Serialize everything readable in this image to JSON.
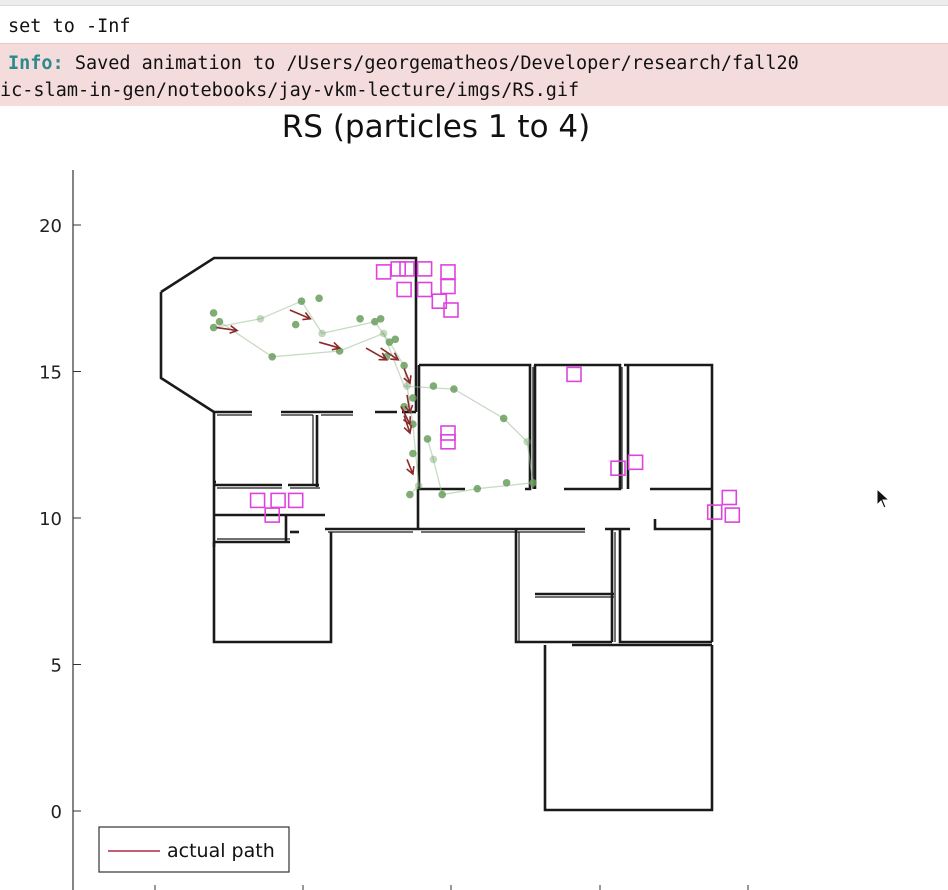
{
  "output": {
    "line1": "set to -Inf",
    "info_label": "Info:",
    "info_line1": " Saved animation to /Users/georgematheos/Developer/research/fall20",
    "info_line2": "ic-slam-in-gen/notebooks/jay-vkm-lecture/imgs/RS.gif"
  },
  "chart_data": {
    "type": "scatter",
    "title": "RS (particles 1 to 4)",
    "xlabel": "",
    "ylabel": "",
    "ylim": [
      -2.5,
      21.5
    ],
    "xlim": [
      -0.3,
      22.5
    ],
    "yticks": [
      0,
      5,
      10,
      15,
      20
    ],
    "legend": {
      "placement": "bottom-left",
      "entries": [
        "actual path"
      ]
    },
    "colors": {
      "walls": "#1a1a1a",
      "landmarks": "#dd44dd",
      "particles": "#6a9e5e",
      "arrows": "#8b2a2a",
      "legend_line": "#c06070"
    },
    "walls": [
      [
        [
          5.1,
          0
        ],
        [
          5.1,
          0.15
        ],
        [
          5.1,
          15.4
        ],
        [
          5.1,
          16.2
        ],
        [
          4.2,
          17.6
        ],
        [
          3.9,
          18.2
        ],
        [
          2.3,
          19.2
        ],
        [
          2.3,
          19.2
        ],
        [
          3.9,
          19.2
        ],
        [
          4.8,
          18.8
        ],
        [
          6.5,
          18.8
        ]
      ],
      [
        [
          2.3,
          19.2
        ],
        [
          4.7,
          19.2
        ]
      ],
      [
        [
          4.7,
          18.7
        ],
        [
          4.7,
          19.2
        ],
        [
          13.7,
          19.2
        ],
        [
          13.7,
          14.9
        ]
      ],
      [
        [
          2.3,
          18.3
        ],
        [
          2.3,
          18.3
        ]
      ],
      [
        [
          4.7,
          18.7
        ],
        [
          4.7,
          15.2
        ]
      ],
      [
        [
          4.7,
          15.2
        ],
        [
          6.6,
          13.7
        ],
        [
          7.9,
          13.7
        ]
      ],
      [
        [
          8.5,
          13.7
        ],
        [
          10.7,
          13.7
        ]
      ],
      [
        [
          11.5,
          13.7
        ],
        [
          13.7,
          13.7
        ]
      ],
      [
        [
          13.7,
          14.9
        ],
        [
          19.6,
          14.9
        ],
        [
          19.6,
          14.9
        ],
        [
          19.6,
          15.5
        ],
        [
          19.6,
          15.5
        ],
        [
          22.5,
          15.5
        ],
        [
          22.5,
          10.9
        ],
        [
          22.5,
          9.8
        ],
        [
          22.5,
          5.8
        ],
        [
          22.5,
          0.1
        ],
        [
          17,
          0.1
        ],
        [
          17,
          5.7
        ],
        [
          17,
          5.7
        ],
        [
          16.1,
          5.7
        ],
        [
          16.1,
          9.8
        ]
      ]
    ],
    "landmarks": [
      [
        10.3,
        18.4
      ],
      [
        10.8,
        18.5
      ],
      [
        11.1,
        18.5
      ],
      [
        11.7,
        18.5
      ],
      [
        12.5,
        18.4
      ],
      [
        11.0,
        17.8
      ],
      [
        11.7,
        17.8
      ],
      [
        12.2,
        17.4
      ],
      [
        12.5,
        17.9
      ],
      [
        12.6,
        17.1
      ],
      [
        16.8,
        14.9
      ],
      [
        18.3,
        11.7
      ],
      [
        18.9,
        11.9
      ],
      [
        12.5,
        12.9
      ],
      [
        12.5,
        12.6
      ],
      [
        6.0,
        10.6
      ],
      [
        6.7,
        10.6
      ],
      [
        7.3,
        10.6
      ],
      [
        6.5,
        10.1
      ],
      [
        21.6,
        10.2
      ],
      [
        22.1,
        10.7
      ],
      [
        22.2,
        10.1
      ]
    ],
    "particles": [
      [
        4.5,
        16.5
      ],
      [
        4.7,
        16.7
      ],
      [
        4.5,
        17.0
      ],
      [
        6.1,
        16.8
      ],
      [
        6.5,
        15.5
      ],
      [
        7.3,
        16.6
      ],
      [
        7.5,
        17.4
      ],
      [
        8.1,
        17.5
      ],
      [
        8.2,
        16.3
      ],
      [
        8.8,
        15.7
      ],
      [
        9.5,
        16.8
      ],
      [
        10.0,
        16.7
      ],
      [
        10.2,
        16.8
      ],
      [
        10.3,
        16.3
      ],
      [
        10.5,
        16.0
      ],
      [
        10.7,
        16.1
      ],
      [
        10.4,
        15.5
      ],
      [
        11.0,
        15.2
      ],
      [
        11.1,
        14.5
      ],
      [
        11.3,
        14.1
      ],
      [
        11.0,
        13.8
      ],
      [
        11.3,
        13.2
      ],
      [
        11.3,
        12.2
      ],
      [
        11.5,
        11.1
      ],
      [
        11.2,
        10.8
      ],
      [
        12.0,
        14.5
      ],
      [
        12.7,
        14.4
      ],
      [
        14.4,
        13.4
      ],
      [
        15.2,
        12.6
      ],
      [
        15.4,
        11.2
      ],
      [
        14.5,
        11.2
      ],
      [
        13.5,
        11.0
      ],
      [
        12.3,
        10.8
      ],
      [
        12.0,
        12.0
      ],
      [
        11.8,
        12.7
      ]
    ],
    "particle_path": [
      [
        4.5,
        16.5
      ],
      [
        6.1,
        16.8
      ],
      [
        7.5,
        17.4
      ],
      [
        8.2,
        16.3
      ],
      [
        10.0,
        16.7
      ],
      [
        10.5,
        16.0
      ],
      [
        11.0,
        15.2
      ],
      [
        11.1,
        14.5
      ],
      [
        11.3,
        13.2
      ],
      [
        11.5,
        11.1
      ],
      [
        11.2,
        10.8
      ]
    ],
    "particle_path2": [
      [
        4.7,
        16.7
      ],
      [
        6.5,
        15.5
      ],
      [
        8.8,
        15.7
      ],
      [
        10.3,
        16.3
      ],
      [
        11.0,
        14.5
      ],
      [
        12.7,
        14.4
      ],
      [
        14.4,
        13.4
      ],
      [
        15.2,
        12.6
      ],
      [
        15.4,
        11.2
      ],
      [
        13.5,
        11.0
      ],
      [
        12.3,
        10.8
      ],
      [
        12.0,
        12.0
      ],
      [
        11.8,
        12.7
      ]
    ],
    "arrows": [
      [
        4.6,
        16.5,
        5.3,
        16.4
      ],
      [
        7.1,
        17.1,
        7.8,
        16.8
      ],
      [
        8.1,
        16.0,
        8.8,
        15.8
      ],
      [
        9.7,
        15.8,
        10.4,
        15.4
      ],
      [
        10.2,
        15.8,
        10.8,
        15.4
      ],
      [
        11.0,
        15.1,
        11.2,
        14.6
      ],
      [
        11.1,
        14.2,
        11.2,
        13.6
      ],
      [
        10.9,
        13.8,
        11.2,
        13.2
      ],
      [
        11.0,
        13.5,
        11.2,
        12.9
      ],
      [
        11.1,
        12.0,
        11.3,
        11.5
      ]
    ]
  }
}
